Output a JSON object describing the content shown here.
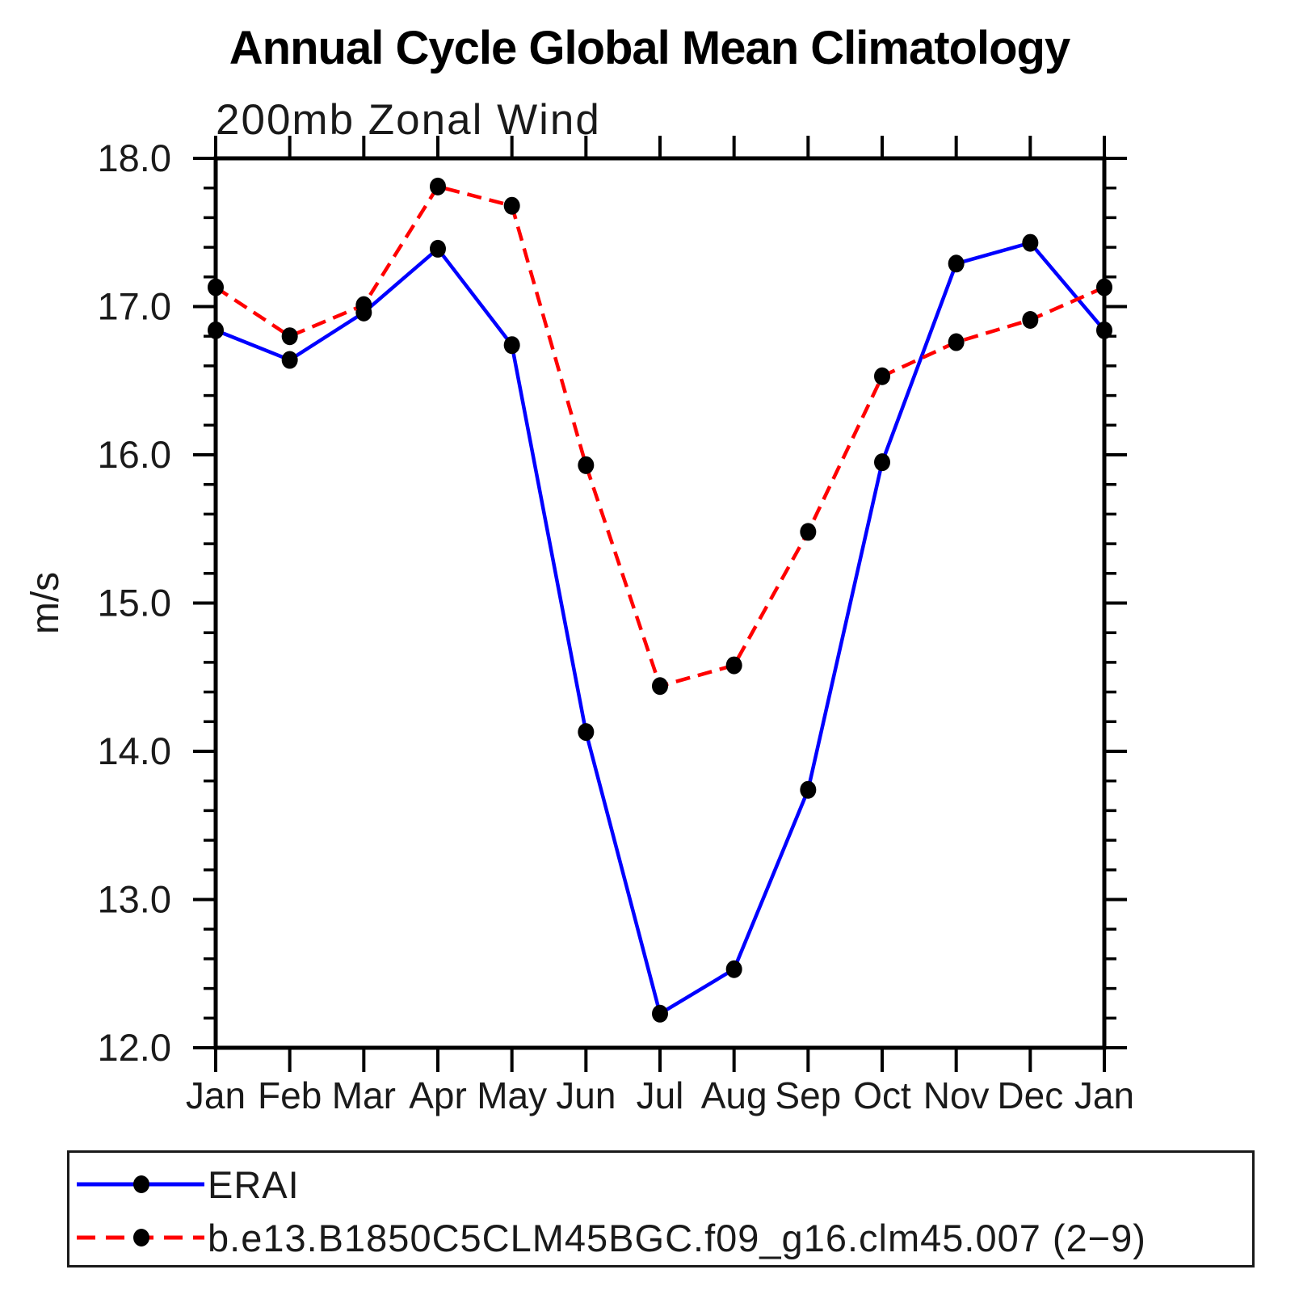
{
  "header": {
    "title": "Annual Cycle Global Mean Climatology"
  },
  "chart_data": {
    "type": "line",
    "title": "Annual Cycle Global Mean Climatology",
    "subtitle": "200mb Zonal Wind",
    "ylabel": "m/s",
    "xlabel": "",
    "categories": [
      "Jan",
      "Feb",
      "Mar",
      "Apr",
      "May",
      "Jun",
      "Jul",
      "Aug",
      "Sep",
      "Oct",
      "Nov",
      "Dec",
      "Jan"
    ],
    "ylim": [
      12.0,
      18.0
    ],
    "ytick_major_step": 1.0,
    "ytick_minor_step": 0.2,
    "grid": false,
    "legend_position": "bottom",
    "frame_color": "#000000",
    "marker_color": "#000000",
    "series": [
      {
        "name": "ERAI",
        "color": "#0000ff",
        "style": "solid",
        "values": [
          16.84,
          16.64,
          16.96,
          17.39,
          16.74,
          14.13,
          12.23,
          12.53,
          13.74,
          15.95,
          17.29,
          17.43,
          16.84
        ]
      },
      {
        "name": "b.e13.B1850C5CLM45BGC.f09_g16.clm45.007 (2−9)",
        "color": "#ff0000",
        "style": "dashed",
        "values": [
          17.13,
          16.8,
          17.01,
          17.81,
          17.68,
          15.93,
          14.44,
          14.58,
          15.48,
          16.53,
          16.76,
          16.91,
          17.13
        ]
      }
    ]
  }
}
